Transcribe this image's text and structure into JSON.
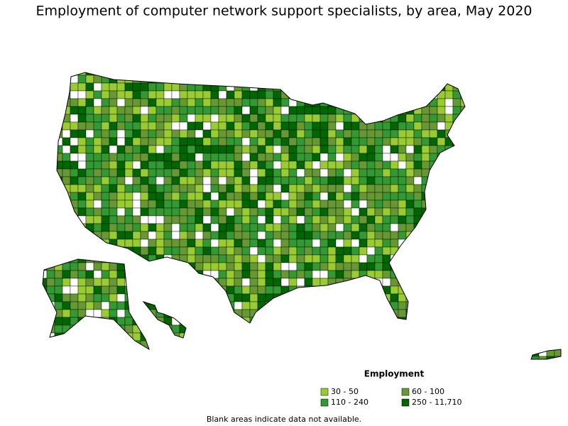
{
  "title": "Employment of computer network support specialists, by area, May 2020",
  "legend": {
    "title": "Employment",
    "items": [
      {
        "label": "30 - 50",
        "color": "#99cc33"
      },
      {
        "label": "60 - 100",
        "color": "#669933"
      },
      {
        "label": "110 - 240",
        "color": "#339933"
      },
      {
        "label": "250 - 11,710",
        "color": "#006600"
      }
    ]
  },
  "footnote": "Blank areas indicate data not available."
}
